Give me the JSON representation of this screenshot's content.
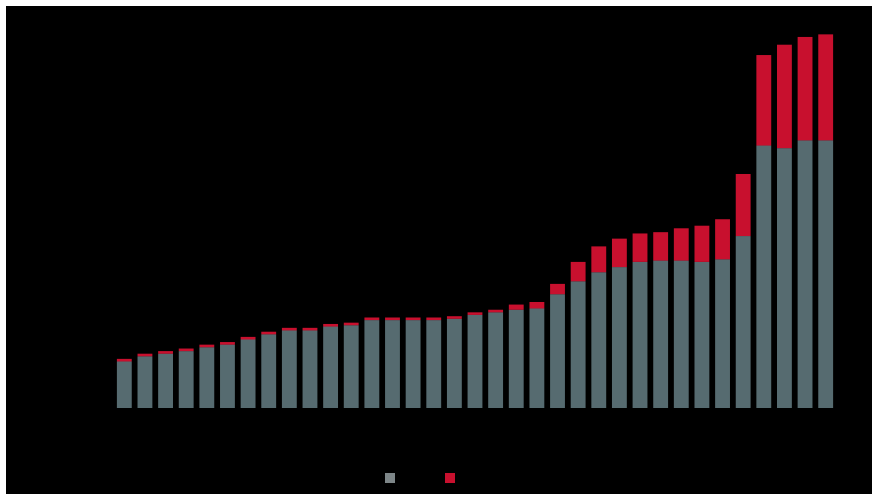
{
  "chart_data": {
    "type": "bar",
    "stacked": true,
    "title": "",
    "xlabel": "",
    "ylabel": "",
    "ylim": [
      0,
      280
    ],
    "grid": false,
    "legend": {
      "placement": "bottom-center",
      "show_labels": false
    },
    "background": "#000000",
    "series": [
      {
        "color": "#566b70",
        "values": [
          36,
          40,
          42,
          44,
          47,
          49,
          53,
          57,
          60,
          60,
          63,
          64,
          68,
          68,
          68,
          68,
          69,
          72,
          74,
          76,
          77,
          88,
          98,
          105,
          109,
          113,
          114,
          114,
          113,
          115,
          133,
          203,
          201,
          207,
          207
        ]
      },
      {
        "color": "#c8102e",
        "values": [
          2,
          2,
          2,
          2,
          2,
          2,
          2,
          2,
          2,
          2,
          2,
          2,
          2,
          2,
          2,
          2,
          2,
          2,
          2,
          4,
          5,
          8,
          15,
          20,
          22,
          22,
          22,
          25,
          28,
          31,
          48,
          70,
          80,
          80,
          82
        ]
      }
    ]
  }
}
